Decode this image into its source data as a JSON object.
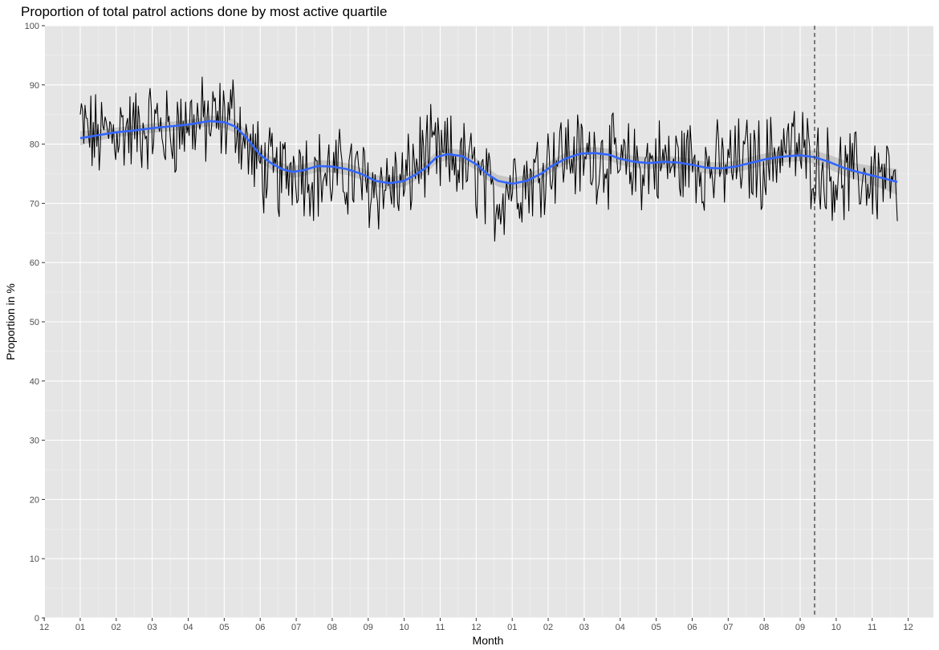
{
  "chart_data": {
    "type": "line",
    "title": "Proportion of total patrol actions done by most active quartile",
    "xlabel": "Month",
    "ylabel": "Proportion in %",
    "ylim": [
      0,
      100
    ],
    "yticks": [
      0,
      10,
      20,
      30,
      40,
      50,
      60,
      70,
      80,
      90,
      100
    ],
    "xlim": [
      -0.98,
      23.7
    ],
    "xticks": [
      {
        "label": "12",
        "x": -1
      },
      {
        "label": "01",
        "x": 0
      },
      {
        "label": "02",
        "x": 1
      },
      {
        "label": "03",
        "x": 2
      },
      {
        "label": "04",
        "x": 3
      },
      {
        "label": "05",
        "x": 4
      },
      {
        "label": "06",
        "x": 5
      },
      {
        "label": "07",
        "x": 6
      },
      {
        "label": "08",
        "x": 7
      },
      {
        "label": "09",
        "x": 8
      },
      {
        "label": "10",
        "x": 9
      },
      {
        "label": "11",
        "x": 10
      },
      {
        "label": "12",
        "x": 11
      },
      {
        "label": "01",
        "x": 12
      },
      {
        "label": "02",
        "x": 13
      },
      {
        "label": "03",
        "x": 14
      },
      {
        "label": "04",
        "x": 15
      },
      {
        "label": "05",
        "x": 16
      },
      {
        "label": "06",
        "x": 17
      },
      {
        "label": "07",
        "x": 18
      },
      {
        "label": "08",
        "x": 19
      },
      {
        "label": "09",
        "x": 20
      },
      {
        "label": "10",
        "x": 21
      },
      {
        "label": "11",
        "x": 22
      },
      {
        "label": "12",
        "x": 23
      }
    ],
    "x_unit": "months since first 01 tick",
    "grid": true,
    "vline": {
      "x": 20.4,
      "style": "dashed",
      "color": "#333333"
    },
    "series": [
      {
        "kind": "raw",
        "color": "#000000",
        "x": [
          0.0,
          0.5,
          1.0,
          1.5,
          2.0,
          2.5,
          3.0,
          3.5,
          4.0,
          4.3,
          4.6,
          5.0,
          5.5,
          6.0,
          6.5,
          7.0,
          7.5,
          8.0,
          8.5,
          9.0,
          9.5,
          10.0,
          10.5,
          11.0,
          11.5,
          12.0,
          12.5,
          13.0,
          13.5,
          14.0,
          14.5,
          15.0,
          15.5,
          16.0,
          16.5,
          17.0,
          17.5,
          18.0,
          18.5,
          19.0,
          19.5,
          20.0,
          20.4,
          20.8,
          21.2,
          21.6,
          22.0,
          22.4,
          22.7
        ],
        "y": [
          85,
          80,
          83,
          82,
          84,
          80,
          85,
          83,
          84,
          88,
          78,
          74,
          72,
          79,
          73,
          73,
          74,
          71,
          73,
          72,
          82,
          77,
          76,
          73,
          65,
          75,
          74,
          79,
          80,
          76,
          78,
          74,
          75,
          77,
          76,
          79,
          75,
          77,
          78,
          76,
          82,
          80,
          75,
          73,
          72,
          74,
          73,
          76,
          67
        ]
      },
      {
        "kind": "smooth",
        "color": "#3366ff",
        "band_color": "#999999",
        "x": [
          0.0,
          0.5,
          1.0,
          1.5,
          2.0,
          2.5,
          3.0,
          3.3,
          3.6,
          4.0,
          4.3,
          4.6,
          5.0,
          5.3,
          5.6,
          5.9,
          6.2,
          6.6,
          7.0,
          7.4,
          7.8,
          8.2,
          8.6,
          9.0,
          9.3,
          9.6,
          9.9,
          10.2,
          10.6,
          11.0,
          11.3,
          11.6,
          12.0,
          12.4,
          12.8,
          13.1,
          13.5,
          13.9,
          14.3,
          14.7,
          15.0,
          15.4,
          15.8,
          16.2,
          16.6,
          17.0,
          17.4,
          17.8,
          18.2,
          18.6,
          19.0,
          19.4,
          19.7,
          20.0,
          20.4,
          20.8,
          21.2,
          21.6,
          22.0,
          22.4,
          22.7
        ],
        "y": [
          81.0,
          81.5,
          82.0,
          82.3,
          82.7,
          83.0,
          83.3,
          83.6,
          83.9,
          83.7,
          83.0,
          81.2,
          78.2,
          76.8,
          75.8,
          75.3,
          75.6,
          76.3,
          76.2,
          75.8,
          75.0,
          73.8,
          73.4,
          73.8,
          74.8,
          76.0,
          77.8,
          78.3,
          78.0,
          76.6,
          75.0,
          73.8,
          73.3,
          73.8,
          75.0,
          76.3,
          77.6,
          78.4,
          78.5,
          78.2,
          77.5,
          77.0,
          76.8,
          77.0,
          76.9,
          76.5,
          76.0,
          75.9,
          76.2,
          76.8,
          77.4,
          77.8,
          78.0,
          78.1,
          77.8,
          77.0,
          76.0,
          75.3,
          74.7,
          74.1,
          73.6
        ],
        "band": [
          1.2,
          0.9,
          0.8,
          0.8,
          0.8,
          0.8,
          0.8,
          0.8,
          0.9,
          1.0,
          1.1,
          1.2,
          1.2,
          1.1,
          1.0,
          1.0,
          1.0,
          1.0,
          1.0,
          1.0,
          1.0,
          1.0,
          1.0,
          1.0,
          1.0,
          1.0,
          1.0,
          1.0,
          1.0,
          1.0,
          1.0,
          1.0,
          1.0,
          1.0,
          1.0,
          1.0,
          1.0,
          1.0,
          1.0,
          1.0,
          1.0,
          1.0,
          1.0,
          1.0,
          1.0,
          1.0,
          1.0,
          1.0,
          1.0,
          1.0,
          1.0,
          1.0,
          1.0,
          1.0,
          1.1,
          1.2,
          1.3,
          1.4,
          1.6,
          1.9,
          2.2
        ]
      }
    ]
  }
}
